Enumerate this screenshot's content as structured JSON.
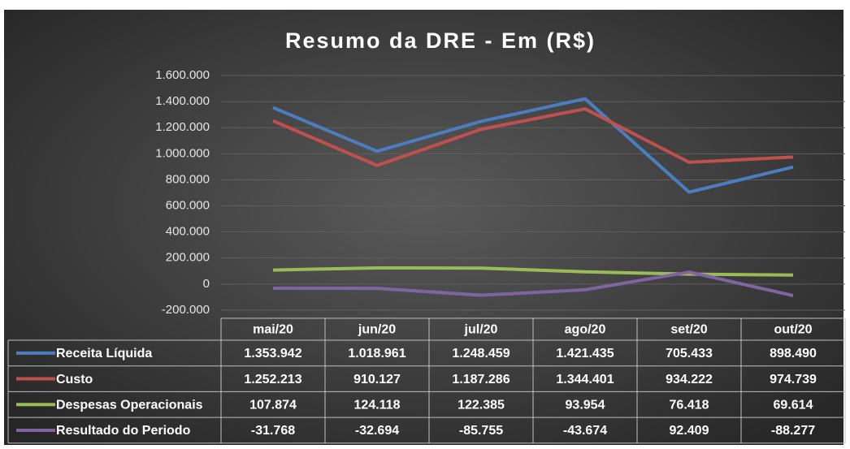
{
  "chart_data": {
    "type": "line",
    "title": "Resumo da DRE - Em (R$)",
    "categories": [
      "mai/20",
      "jun/20",
      "jul/20",
      "ago/20",
      "set/20",
      "out/20"
    ],
    "series": [
      {
        "name": "Receita Líquida",
        "color": "#4a7ebf",
        "values": [
          1353942,
          1018961,
          1248459,
          1421435,
          705433,
          898490
        ],
        "value_labels": [
          "1.353.942",
          "1.018.961",
          "1.248.459",
          "1.421.435",
          "705.433",
          "898.490"
        ]
      },
      {
        "name": "Custo",
        "color": "#c0504d",
        "values": [
          1252213,
          910127,
          1187286,
          1344401,
          934222,
          974739
        ],
        "value_labels": [
          "1.252.213",
          "910.127",
          "1.187.286",
          "1.344.401",
          "934.222",
          "974.739"
        ]
      },
      {
        "name": "Despesas Operacionais",
        "color": "#9bbb59",
        "values": [
          107874,
          124118,
          122385,
          93954,
          76418,
          69614
        ],
        "value_labels": [
          "107.874",
          "124.118",
          "122.385",
          "93.954",
          "76.418",
          "69.614"
        ]
      },
      {
        "name": "Resultado do Periodo",
        "color": "#8064a2",
        "values": [
          -31768,
          -32694,
          -85755,
          -43674,
          92409,
          -88277
        ],
        "value_labels": [
          "-31.768",
          "-32.694",
          "-85.755",
          "-43.674",
          "92.409",
          "-88.277"
        ]
      }
    ],
    "ylim": [
      -200000,
      1600000
    ],
    "yticks": [
      {
        "value": -200000,
        "label": "-200.000"
      },
      0,
      {
        "value": 200000,
        "label": "200.000"
      },
      {
        "value": 400000,
        "label": "400.000"
      },
      {
        "value": 600000,
        "label": "600.000"
      },
      {
        "value": 800000,
        "label": "800.000"
      },
      {
        "value": 1000000,
        "label": "1.000.000"
      },
      {
        "value": 1200000,
        "label": "1.200.000"
      },
      {
        "value": 1400000,
        "label": "1.400.000"
      },
      {
        "value": 1600000,
        "label": "1.600.000"
      }
    ],
    "grid": true
  }
}
